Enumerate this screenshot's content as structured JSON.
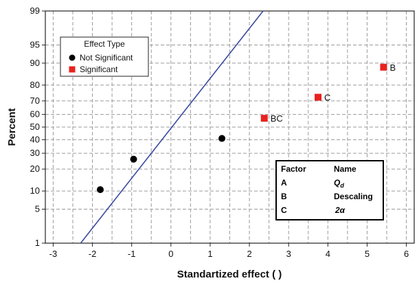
{
  "chart_data": {
    "type": "scatter",
    "xlabel": "Standartized effect ( )",
    "ylabel": "Percent",
    "xlim": [
      -3.2,
      6.2
    ],
    "x_ticks": [
      -3,
      -2,
      -1,
      0,
      1,
      2,
      3,
      4,
      5,
      6
    ],
    "y_scale": "normal-probability",
    "y_ticks": [
      1,
      5,
      10,
      20,
      30,
      40,
      50,
      60,
      70,
      80,
      90,
      95,
      99
    ],
    "grid": true,
    "legend": {
      "title": "Effect Type",
      "placement": "top-left",
      "entries": [
        {
          "name": "Not Significant",
          "marker": "circle",
          "color": "#000000"
        },
        {
          "name": "Significant",
          "marker": "square",
          "color": "#e8221f"
        }
      ]
    },
    "series": [
      {
        "name": "Not Significant",
        "color": "#000000",
        "marker": "circle",
        "points": [
          {
            "x": -1.8,
            "y": 10.5,
            "label": ""
          },
          {
            "x": -0.95,
            "y": 26,
            "label": ""
          },
          {
            "x": 1.3,
            "y": 41,
            "label": ""
          }
        ]
      },
      {
        "name": "Significant",
        "color": "#e8221f",
        "marker": "square",
        "points": [
          {
            "x": 2.38,
            "y": 57,
            "label": "BC"
          },
          {
            "x": 3.75,
            "y": 72.5,
            "label": "C"
          },
          {
            "x": 5.42,
            "y": 88.5,
            "label": "B"
          }
        ]
      }
    ],
    "reference_line": {
      "color": "#3b4ba0",
      "points": [
        {
          "x": -2.3,
          "y": 1
        },
        {
          "x": 2.35,
          "y": 99
        }
      ]
    },
    "factor_table": {
      "headers": [
        "Factor",
        "Name"
      ],
      "rows": [
        {
          "factor": "A",
          "name": "Q",
          "subscript": "d"
        },
        {
          "factor": "B",
          "name": "Descaling",
          "subscript": ""
        },
        {
          "factor": "C",
          "name": "2α",
          "subscript": ""
        }
      ]
    }
  }
}
